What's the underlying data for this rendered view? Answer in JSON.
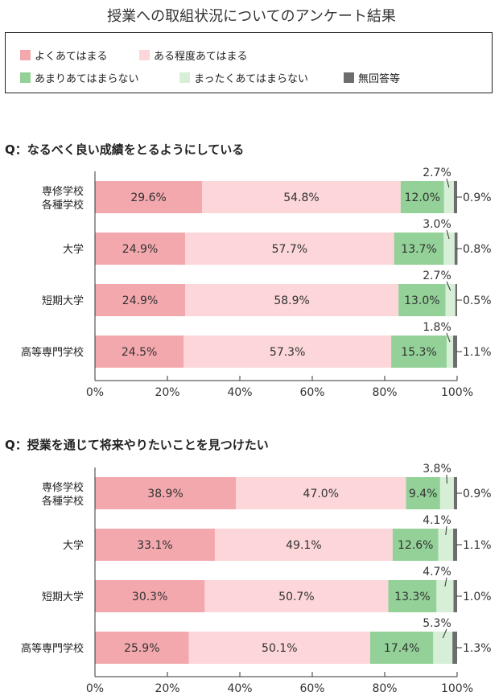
{
  "title": "授業への取組状況についてのアンケート結果",
  "legend": [
    {
      "label": "よくあてはまる",
      "color": "#f3a8ae"
    },
    {
      "label": "ある程度あてはまる",
      "color": "#fcd6d8"
    },
    {
      "label": "あまりあてはまらない",
      "color": "#93d198"
    },
    {
      "label": "まったくあてはまらない",
      "color": "#d6efd6"
    },
    {
      "label": "無回答等",
      "color": "#6d6d6d"
    }
  ],
  "chart_data": [
    {
      "type": "bar",
      "stacked": true,
      "orientation": "horizontal",
      "title": "Q：なるべく良い成績をとるようにしている",
      "categories": [
        [
          "専修学校",
          "各種学校"
        ],
        [
          "大学"
        ],
        [
          "短期大学"
        ],
        [
          "高等専門学校"
        ]
      ],
      "series": [
        {
          "name": "よくあてはまる",
          "values": [
            29.6,
            24.9,
            24.9,
            24.5
          ]
        },
        {
          "name": "ある程度あてはまる",
          "values": [
            54.8,
            57.7,
            58.9,
            57.3
          ]
        },
        {
          "name": "あまりあてはまらない",
          "values": [
            12.0,
            13.7,
            13.0,
            15.3
          ]
        },
        {
          "name": "まったくあてはまらない",
          "values": [
            2.7,
            3.0,
            2.7,
            1.8
          ]
        },
        {
          "name": "無回答等",
          "values": [
            0.9,
            0.8,
            0.5,
            1.1
          ]
        }
      ],
      "value_labels": {
        "s0": [
          "29.6%",
          "24.9%",
          "24.9%",
          "24.5%"
        ],
        "s1": [
          "54.8%",
          "57.7%",
          "58.9%",
          "57.3%"
        ],
        "s2": [
          "12.0%",
          "13.7%",
          "13.0%",
          "15.3%"
        ],
        "s3": [
          "2.7%",
          "3.0%",
          "2.7%",
          "1.8%"
        ],
        "s4": [
          "0.9%",
          "0.8%",
          "0.5%",
          "1.1%"
        ]
      },
      "xlim": [
        0,
        100
      ],
      "xticks": [
        "0%",
        "20%",
        "40%",
        "60%",
        "80%",
        "100%"
      ]
    },
    {
      "type": "bar",
      "stacked": true,
      "orientation": "horizontal",
      "title": "Q：授業を通じて将来やりたいことを見つけたい",
      "categories": [
        [
          "専修学校",
          "各種学校"
        ],
        [
          "大学"
        ],
        [
          "短期大学"
        ],
        [
          "高等専門学校"
        ]
      ],
      "series": [
        {
          "name": "よくあてはまる",
          "values": [
            38.9,
            33.1,
            30.3,
            25.9
          ]
        },
        {
          "name": "ある程度あてはまる",
          "values": [
            47.0,
            49.1,
            50.7,
            50.1
          ]
        },
        {
          "name": "あまりあてはまらない",
          "values": [
            9.4,
            12.6,
            13.3,
            17.4
          ]
        },
        {
          "name": "まったくあてはまらない",
          "values": [
            3.8,
            4.1,
            4.7,
            5.3
          ]
        },
        {
          "name": "無回答等",
          "values": [
            0.9,
            1.1,
            1.0,
            1.3
          ]
        }
      ],
      "value_labels": {
        "s0": [
          "38.9%",
          "33.1%",
          "30.3%",
          "25.9%"
        ],
        "s1": [
          "47.0%",
          "49.1%",
          "50.7%",
          "50.1%"
        ],
        "s2": [
          "9.4%",
          "12.6%",
          "13.3%",
          "17.4%"
        ],
        "s3": [
          "3.8%",
          "4.1%",
          "4.7%",
          "5.3%"
        ],
        "s4": [
          "0.9%",
          "1.1%",
          "1.0%",
          "1.3%"
        ]
      },
      "xlim": [
        0,
        100
      ],
      "xticks": [
        "0%",
        "20%",
        "40%",
        "60%",
        "80%",
        "100%"
      ]
    }
  ]
}
